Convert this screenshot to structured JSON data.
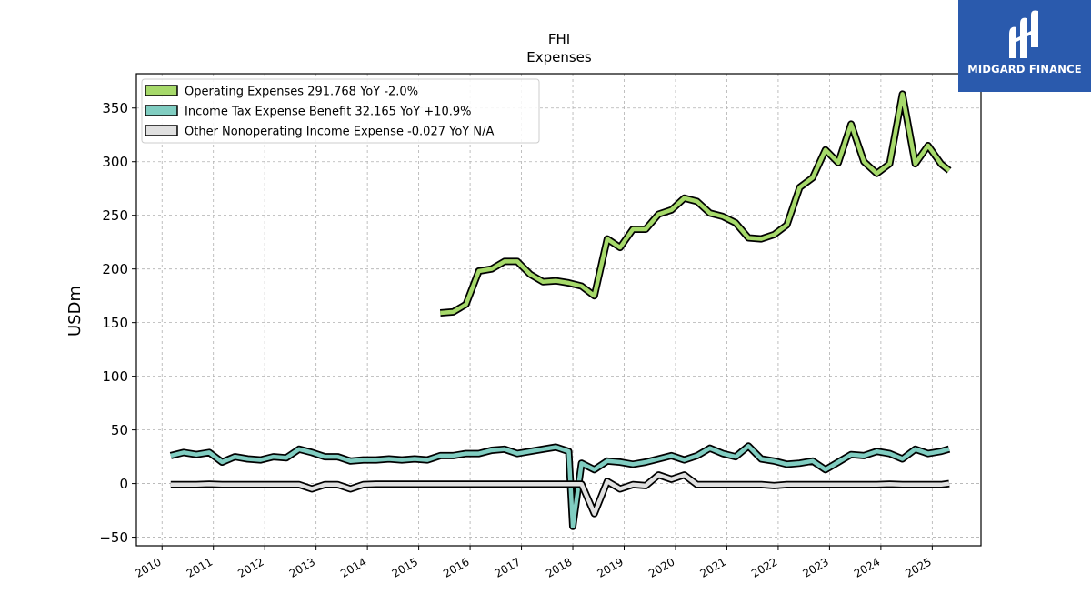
{
  "chart_data": {
    "type": "line",
    "title": "FHI",
    "subtitle": "Expenses",
    "ylabel": "USDm",
    "xlabel": "",
    "ylim": [
      -58,
      382
    ],
    "xlim": [
      2009.5,
      2025.95
    ],
    "yticks": [
      -50,
      0,
      50,
      100,
      150,
      200,
      250,
      300,
      350
    ],
    "xticks": [
      2010,
      2011,
      2012,
      2013,
      2014,
      2015,
      2016,
      2017,
      2018,
      2019,
      2020,
      2021,
      2022,
      2023,
      2024,
      2025
    ],
    "grid": true,
    "legend_position": "top-left",
    "series": [
      {
        "name": "Operating Expenses",
        "legend_label": "Operating Expenses  291.768 YoY -2.0%",
        "color": "#a6d96a",
        "x": [
          2015.42,
          2015.67,
          2015.92,
          2016.17,
          2016.42,
          2016.67,
          2016.92,
          2017.17,
          2017.42,
          2017.67,
          2017.92,
          2018.17,
          2018.42,
          2018.67,
          2018.92,
          2019.17,
          2019.42,
          2019.67,
          2019.92,
          2020.17,
          2020.42,
          2020.67,
          2020.92,
          2021.17,
          2021.42,
          2021.67,
          2021.92,
          2022.17,
          2022.42,
          2022.67,
          2022.92,
          2023.17,
          2023.42,
          2023.67,
          2023.92,
          2024.17,
          2024.42,
          2024.67,
          2024.92,
          2025.17,
          2025.33
        ],
        "values": [
          159,
          160,
          167,
          198,
          200,
          207,
          207,
          195,
          188,
          189,
          187,
          184,
          175,
          228,
          220,
          237,
          237,
          251,
          255,
          266,
          263,
          252,
          249,
          243,
          229,
          228,
          232,
          241,
          276,
          285,
          311,
          299,
          335,
          300,
          289,
          298,
          363,
          298,
          315,
          298,
          291.768
        ]
      },
      {
        "name": "Income Tax Expense Benefit",
        "legend_label": "Income Tax Expense Benefit  32.165 YoY +10.9%",
        "color": "#80cdc1",
        "x": [
          2010.17,
          2010.42,
          2010.67,
          2010.92,
          2011.17,
          2011.42,
          2011.67,
          2011.92,
          2012.17,
          2012.42,
          2012.67,
          2012.92,
          2013.17,
          2013.42,
          2013.67,
          2013.92,
          2014.17,
          2014.42,
          2014.67,
          2014.92,
          2015.17,
          2015.42,
          2015.67,
          2015.92,
          2016.17,
          2016.42,
          2016.67,
          2016.92,
          2017.17,
          2017.42,
          2017.67,
          2017.92,
          2018.0,
          2018.17,
          2018.42,
          2018.67,
          2018.92,
          2019.17,
          2019.42,
          2019.67,
          2019.92,
          2020.17,
          2020.42,
          2020.67,
          2020.92,
          2021.17,
          2021.42,
          2021.67,
          2021.92,
          2022.17,
          2022.42,
          2022.67,
          2022.92,
          2023.17,
          2023.42,
          2023.67,
          2023.92,
          2024.17,
          2024.42,
          2024.67,
          2024.92,
          2025.17,
          2025.33
        ],
        "values": [
          26,
          29,
          27,
          29,
          20,
          25,
          23,
          22,
          25,
          24,
          32,
          29,
          25,
          25,
          21,
          22,
          22,
          23,
          22,
          23,
          22,
          26,
          26,
          28,
          28,
          31,
          32,
          28,
          30,
          32,
          34,
          30,
          -40,
          19,
          13,
          21,
          20,
          18,
          20,
          23,
          26,
          22,
          26,
          33,
          28,
          25,
          35,
          23,
          21,
          18,
          19,
          21,
          13,
          20,
          27,
          26,
          30,
          28,
          23,
          32,
          28,
          30,
          32.165
        ]
      },
      {
        "name": "Other Nonoperating Income Expense",
        "legend_label": "Other Nonoperating Income Expense  -0.027 YoY N/A",
        "color": "#e0e0e0",
        "x": [
          2010.17,
          2010.42,
          2010.67,
          2010.92,
          2011.17,
          2011.42,
          2011.67,
          2011.92,
          2012.17,
          2012.42,
          2012.67,
          2012.92,
          2013.17,
          2013.42,
          2013.67,
          2013.92,
          2014.17,
          2014.42,
          2014.67,
          2014.92,
          2015.17,
          2015.42,
          2015.67,
          2015.92,
          2016.17,
          2016.42,
          2016.67,
          2016.92,
          2017.17,
          2017.42,
          2017.67,
          2017.92,
          2018.17,
          2018.42,
          2018.67,
          2018.92,
          2019.17,
          2019.42,
          2019.67,
          2019.92,
          2020.17,
          2020.42,
          2020.67,
          2020.92,
          2021.17,
          2021.42,
          2021.67,
          2021.92,
          2022.17,
          2022.42,
          2022.67,
          2022.92,
          2023.17,
          2023.42,
          2023.67,
          2023.92,
          2024.17,
          2024.42,
          2024.67,
          2024.92,
          2025.17,
          2025.33
        ],
        "values": [
          -1,
          -1,
          -1,
          -0.5,
          -1,
          -1,
          -1,
          -1,
          -1,
          -1,
          -1,
          -5,
          -1,
          -1,
          -5,
          -1,
          -0.5,
          -0.5,
          -0.5,
          -0.5,
          -0.5,
          -0.5,
          -0.5,
          -0.5,
          -0.5,
          -0.5,
          -0.5,
          -0.5,
          -0.5,
          -0.5,
          -0.5,
          -0.5,
          -0.5,
          -28,
          2,
          -5,
          -1,
          -2,
          8,
          4,
          8,
          -1,
          -1,
          -1,
          -1,
          -1,
          -1,
          -2,
          -1,
          -1,
          -1,
          -1,
          -1,
          -1,
          -1,
          -1,
          -0.5,
          -1,
          -1,
          -1,
          -1,
          -0.027
        ]
      }
    ]
  },
  "logo": {
    "text": "MIDGARD FINANCE",
    "bg_color": "#2a5aad"
  }
}
